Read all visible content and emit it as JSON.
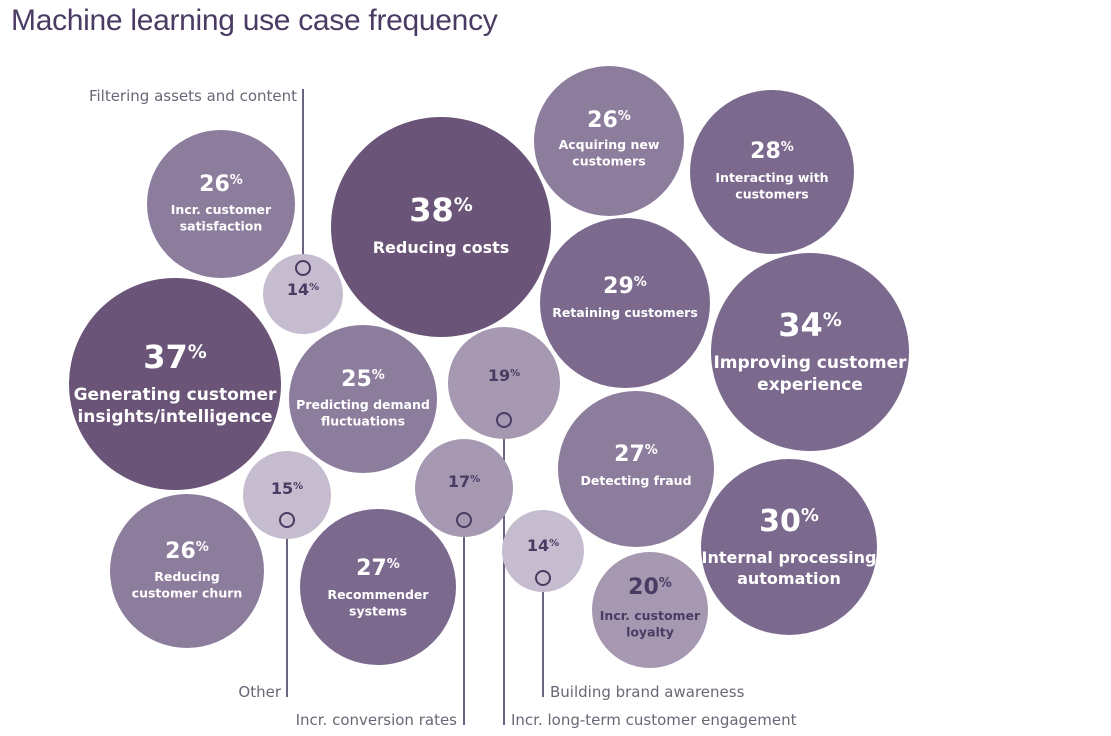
{
  "title": "Machine learning use case frequency",
  "colors": {
    "dark": "#6a5478",
    "medium": "#7c6a8e",
    "light": "#8d7d9d",
    "pale": "#a698b1",
    "palest": "#c6bccf",
    "text_light": "#ffffff",
    "text_dark": "#4a3b63",
    "line": "#4a3b63"
  },
  "chart_data": {
    "type": "bubble",
    "unit": "%",
    "items": [
      {
        "label": "Reducing costs",
        "value": 38
      },
      {
        "label": "Generating customer insights/intelligence",
        "value": 37
      },
      {
        "label": "Improving customer experience",
        "value": 34
      },
      {
        "label": "Internal processing automation",
        "value": 30
      },
      {
        "label": "Retaining customers",
        "value": 29
      },
      {
        "label": "Interacting with customers",
        "value": 28
      },
      {
        "label": "Detecting fraud",
        "value": 27
      },
      {
        "label": "Recommender systems",
        "value": 27
      },
      {
        "label": "Acquiring new customers",
        "value": 26
      },
      {
        "label": "Incr. customer satisfaction",
        "value": 26
      },
      {
        "label": "Reducing customer churn",
        "value": 26
      },
      {
        "label": "Predicting demand fluctuations",
        "value": 25
      },
      {
        "label": "Incr. customer loyalty",
        "value": 20
      },
      {
        "label": "Incr. long-term customer engagement",
        "value": 19
      },
      {
        "label": "Incr. conversion rates",
        "value": 17
      },
      {
        "label": "Other",
        "value": 15
      },
      {
        "label": "Filtering assets and content",
        "value": 14
      },
      {
        "label": "Building brand awareness",
        "value": 14
      }
    ]
  }
}
